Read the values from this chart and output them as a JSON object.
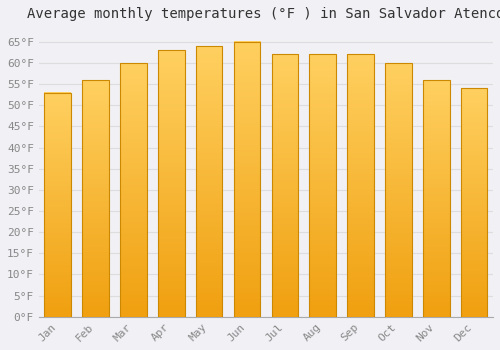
{
  "title": "Average monthly temperatures (°F ) in San Salvador Atenco",
  "months": [
    "Jan",
    "Feb",
    "Mar",
    "Apr",
    "May",
    "Jun",
    "Jul",
    "Aug",
    "Sep",
    "Oct",
    "Nov",
    "Dec"
  ],
  "values": [
    53,
    56,
    60,
    63,
    64,
    65,
    62,
    62,
    62,
    60,
    56,
    54
  ],
  "bar_color_bottom": "#F0A010",
  "bar_color_top": "#FFD060",
  "bar_edge_color": "#CC8800",
  "background_color": "#F0F0F5",
  "plot_bg_color": "#F0F0F5",
  "grid_color": "#DDDDDD",
  "ylim": [
    0,
    68
  ],
  "yticks": [
    0,
    5,
    10,
    15,
    20,
    25,
    30,
    35,
    40,
    45,
    50,
    55,
    60,
    65
  ],
  "title_fontsize": 10,
  "tick_fontsize": 8,
  "bar_width": 0.7,
  "figsize": [
    5.0,
    3.5
  ],
  "dpi": 100
}
